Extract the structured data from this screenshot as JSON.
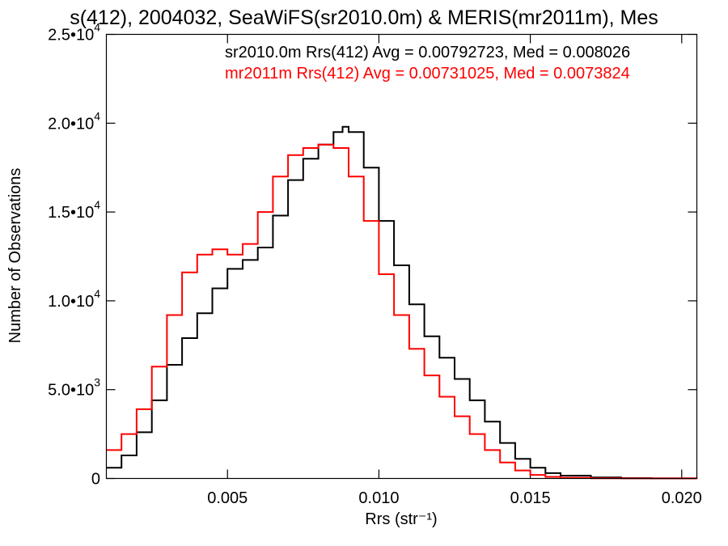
{
  "chart_data": {
    "type": "line",
    "title": "s(412), 2004032, SeaWiFS(sr2010.0m) & MERIS(mr2011m), Mes",
    "xlabel": "Rrs (str⁻¹)",
    "ylabel": "Number of Observations",
    "xlim": [
      0.001,
      0.0205
    ],
    "ylim": [
      0,
      25000
    ],
    "x_ticks": [
      {
        "value": 0.005,
        "label": "0.005"
      },
      {
        "value": 0.01,
        "label": "0.010"
      },
      {
        "value": 0.015,
        "label": "0.015"
      },
      {
        "value": 0.02,
        "label": "0.020"
      }
    ],
    "y_ticks": [
      {
        "value": 0,
        "label": "0"
      },
      {
        "value": 5000,
        "label": "5.0•10",
        "exp": "3"
      },
      {
        "value": 10000,
        "label": "1.0•10",
        "exp": "4"
      },
      {
        "value": 15000,
        "label": "1.5•10",
        "exp": "4"
      },
      {
        "value": 20000,
        "label": "2.0•10",
        "exp": "4"
      },
      {
        "value": 25000,
        "label": "2.5•10",
        "exp": "4"
      }
    ],
    "series": [
      {
        "stats": "sr2010.0m Rrs(412) Avg = 0.00792723, Med = 0.008026",
        "color": "#000000",
        "points": [
          [
            0.001,
            600
          ],
          [
            0.0015,
            1300
          ],
          [
            0.002,
            2600
          ],
          [
            0.0025,
            4400
          ],
          [
            0.003,
            6400
          ],
          [
            0.0035,
            7900
          ],
          [
            0.004,
            9300
          ],
          [
            0.0045,
            10700
          ],
          [
            0.005,
            11800
          ],
          [
            0.0055,
            12300
          ],
          [
            0.006,
            13000
          ],
          [
            0.0065,
            14800
          ],
          [
            0.007,
            16800
          ],
          [
            0.0075,
            18000
          ],
          [
            0.008,
            18800
          ],
          [
            0.0085,
            19500
          ],
          [
            0.0088,
            19800
          ],
          [
            0.009,
            19500
          ],
          [
            0.0095,
            17500
          ],
          [
            0.01,
            14500
          ],
          [
            0.0105,
            12000
          ],
          [
            0.011,
            9800
          ],
          [
            0.0115,
            8000
          ],
          [
            0.012,
            6800
          ],
          [
            0.0125,
            5600
          ],
          [
            0.013,
            4400
          ],
          [
            0.0135,
            3200
          ],
          [
            0.014,
            2000
          ],
          [
            0.0145,
            1100
          ],
          [
            0.015,
            600
          ],
          [
            0.0155,
            300
          ],
          [
            0.016,
            160
          ],
          [
            0.017,
            60
          ],
          [
            0.018,
            20
          ],
          [
            0.019,
            5
          ],
          [
            0.0205,
            0
          ]
        ]
      },
      {
        "stats": "mr2011m Rrs(412) Avg = 0.00731025, Med = 0.0073824",
        "color": "#ff0000",
        "points": [
          [
            0.001,
            1600
          ],
          [
            0.0015,
            2500
          ],
          [
            0.002,
            3900
          ],
          [
            0.0025,
            6300
          ],
          [
            0.003,
            9200
          ],
          [
            0.0035,
            11600
          ],
          [
            0.004,
            12600
          ],
          [
            0.0045,
            12900
          ],
          [
            0.005,
            12600
          ],
          [
            0.0055,
            13200
          ],
          [
            0.006,
            15000
          ],
          [
            0.0065,
            17000
          ],
          [
            0.007,
            18200
          ],
          [
            0.0075,
            18600
          ],
          [
            0.008,
            18800
          ],
          [
            0.0085,
            18600
          ],
          [
            0.009,
            17000
          ],
          [
            0.0095,
            14500
          ],
          [
            0.01,
            11500
          ],
          [
            0.0105,
            9200
          ],
          [
            0.011,
            7300
          ],
          [
            0.0115,
            5800
          ],
          [
            0.012,
            4600
          ],
          [
            0.0125,
            3500
          ],
          [
            0.013,
            2500
          ],
          [
            0.0135,
            1600
          ],
          [
            0.014,
            900
          ],
          [
            0.0145,
            450
          ],
          [
            0.015,
            200
          ],
          [
            0.0155,
            90
          ],
          [
            0.016,
            40
          ],
          [
            0.017,
            12
          ],
          [
            0.018,
            3
          ],
          [
            0.0205,
            0
          ]
        ]
      }
    ],
    "grid": false,
    "legend": "top-right"
  }
}
